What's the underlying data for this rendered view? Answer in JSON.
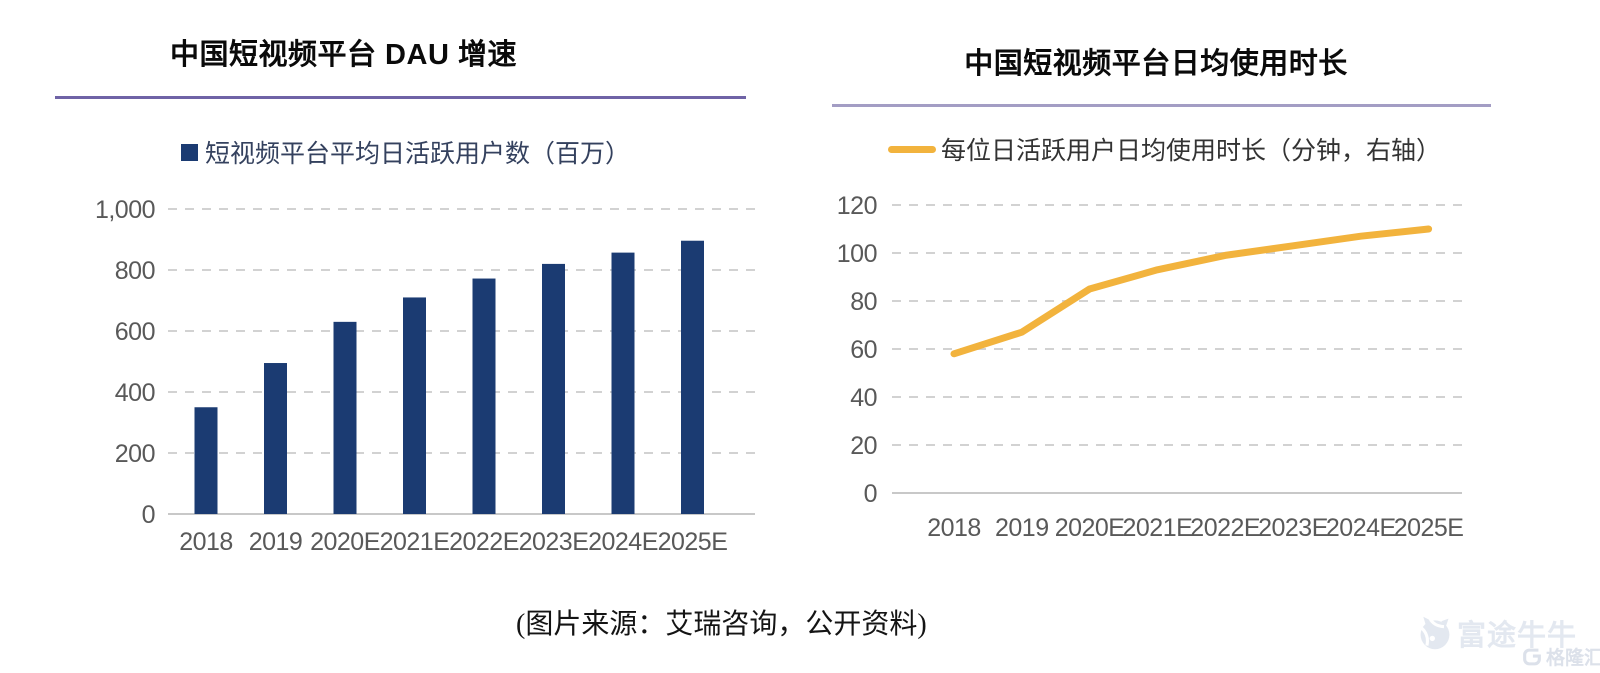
{
  "colors": {
    "bar": "#1B3B72",
    "line": "#F2B33D",
    "divider_left": "#6F63A6",
    "divider_right": "#A39DC4",
    "grid": "#D2D2D2",
    "axis_line": "#C8C8C8",
    "axis_text": "#595959",
    "legend_text_left": "#34415E",
    "legend_text_right": "#333333",
    "watermark_futu": "#E3E8F0",
    "watermark_gelonghui": "#DCE1EA"
  },
  "chart_data": [
    {
      "id": "dau-bar-chart",
      "type": "bar",
      "title": "中国短视频平台 DAU 增速",
      "legend": "短视频平台平均日活跃用户数（百万）",
      "categories": [
        "2018",
        "2019",
        "2020E",
        "2021E",
        "2022E",
        "2023E",
        "2024E",
        "2025E"
      ],
      "values": [
        350,
        495,
        630,
        710,
        772,
        820,
        857,
        896
      ],
      "ylim": [
        0,
        1000
      ],
      "ytick_step": 200,
      "ytick_labels": [
        "0",
        "200",
        "400",
        "600",
        "800",
        "1,000"
      ],
      "grid": "dashed-horizontal",
      "legend_position": "top",
      "xlabel": "",
      "ylabel": ""
    },
    {
      "id": "usage-line-chart",
      "type": "line",
      "title": "中国短视频平台日均使用时长",
      "legend": "每位日活跃用户日均使用时长（分钟，右轴）",
      "categories": [
        "2018",
        "2019",
        "2020E",
        "2021E",
        "2022E",
        "2023E",
        "2024E",
        "2025E"
      ],
      "values": [
        58,
        67,
        85,
        93,
        99,
        103,
        107,
        110
      ],
      "ylim": [
        0,
        120
      ],
      "ytick_step": 20,
      "ytick_labels": [
        "0",
        "20",
        "40",
        "60",
        "80",
        "100",
        "120"
      ],
      "grid": "dashed-horizontal",
      "legend_position": "top",
      "xlabel": "",
      "ylabel": ""
    }
  ],
  "source_caption": "(图片来源：艾瑞咨询，公开资料)",
  "watermarks": {
    "futu_label": "富途牛牛",
    "gelonghui_label": "格隆汇"
  }
}
